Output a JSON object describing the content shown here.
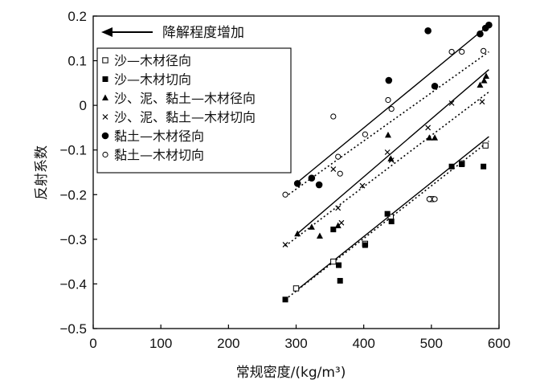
{
  "chart_data": {
    "type": "scatter",
    "xlabel": "常规密度/(kg/m³)",
    "ylabel": "反射系数",
    "xlim": [
      0,
      600
    ],
    "ylim": [
      -0.5,
      0.2
    ],
    "x_ticks": [
      "0",
      "100",
      "200",
      "300",
      "400",
      "500",
      "600"
    ],
    "y_ticks": [
      "0.2",
      "0.1",
      "0",
      "−0.1",
      "−0.2",
      "−0.3",
      "−0.4",
      "−0.5"
    ],
    "grid": false,
    "legend_position": "top-left",
    "annotation": "降解程度增加",
    "series": [
      {
        "name": "沙—木材径向",
        "marker": "square-open",
        "points": [
          [
            300,
            -0.41
          ],
          [
            355,
            -0.35
          ],
          [
            402,
            -0.31
          ],
          [
            440,
            -0.25
          ],
          [
            500,
            -0.21
          ],
          [
            545,
            -0.13
          ],
          [
            580,
            -0.09
          ]
        ]
      },
      {
        "name": "沙—木材切向",
        "marker": "square-filled",
        "points": [
          [
            284,
            -0.435
          ],
          [
            355,
            -0.278
          ],
          [
            363,
            -0.358
          ],
          [
            365,
            -0.393
          ],
          [
            402,
            -0.313
          ],
          [
            435,
            -0.243
          ],
          [
            441,
            -0.26
          ],
          [
            530,
            -0.137
          ],
          [
            545,
            -0.132
          ],
          [
            577,
            -0.137
          ]
        ]
      },
      {
        "name": "沙、泥、黏土—木材径向",
        "marker": "triangle-filled",
        "points": [
          [
            302,
            -0.288
          ],
          [
            323,
            -0.273
          ],
          [
            335,
            -0.293
          ],
          [
            362,
            -0.27
          ],
          [
            436,
            -0.067
          ],
          [
            440,
            -0.12
          ],
          [
            497,
            -0.073
          ],
          [
            505,
            -0.073
          ],
          [
            572,
            0.045
          ],
          [
            578,
            0.055
          ],
          [
            581,
            0.065
          ]
        ]
      },
      {
        "name": "沙、泥、黏土—木材切向",
        "marker": "x",
        "points": [
          [
            284,
            -0.312
          ],
          [
            355,
            -0.143
          ],
          [
            362,
            -0.23
          ],
          [
            367,
            -0.263
          ],
          [
            398,
            -0.18
          ],
          [
            435,
            -0.105
          ],
          [
            441,
            -0.123
          ],
          [
            495,
            -0.05
          ],
          [
            530,
            0.005
          ],
          [
            575,
            0.008
          ]
        ]
      },
      {
        "name": "黏土—木材径向",
        "marker": "circle-filled",
        "points": [
          [
            302,
            -0.175
          ],
          [
            323,
            -0.163
          ],
          [
            334,
            -0.178
          ],
          [
            437,
            0.056
          ],
          [
            495,
            0.167
          ],
          [
            505,
            0.043
          ],
          [
            572,
            0.16
          ],
          [
            580,
            0.173
          ],
          [
            585,
            0.18
          ]
        ]
      },
      {
        "name": "黏土—木材切向",
        "marker": "circle-open",
        "points": [
          [
            284,
            -0.2
          ],
          [
            355,
            -0.025
          ],
          [
            362,
            -0.115
          ],
          [
            365,
            -0.153
          ],
          [
            402,
            -0.065
          ],
          [
            436,
            0.012
          ],
          [
            441,
            -0.008
          ],
          [
            497,
            -0.21
          ],
          [
            505,
            -0.21
          ],
          [
            530,
            0.12
          ],
          [
            545,
            0.12
          ],
          [
            577,
            0.122
          ]
        ]
      }
    ],
    "trend_lines": [
      {
        "style": "solid",
        "points": [
          [
            300,
            -0.175
          ],
          [
            585,
            0.18
          ]
        ]
      },
      {
        "style": "dotted",
        "points": [
          [
            284,
            -0.205
          ],
          [
            585,
            0.12
          ]
        ]
      },
      {
        "style": "solid",
        "points": [
          [
            300,
            -0.29
          ],
          [
            585,
            0.08
          ]
        ]
      },
      {
        "style": "dotted",
        "points": [
          [
            284,
            -0.315
          ],
          [
            585,
            0.03
          ]
        ]
      },
      {
        "style": "solid",
        "points": [
          [
            300,
            -0.415
          ],
          [
            585,
            -0.07
          ]
        ]
      },
      {
        "style": "dotted",
        "points": [
          [
            284,
            -0.435
          ],
          [
            585,
            -0.08
          ]
        ]
      }
    ]
  }
}
